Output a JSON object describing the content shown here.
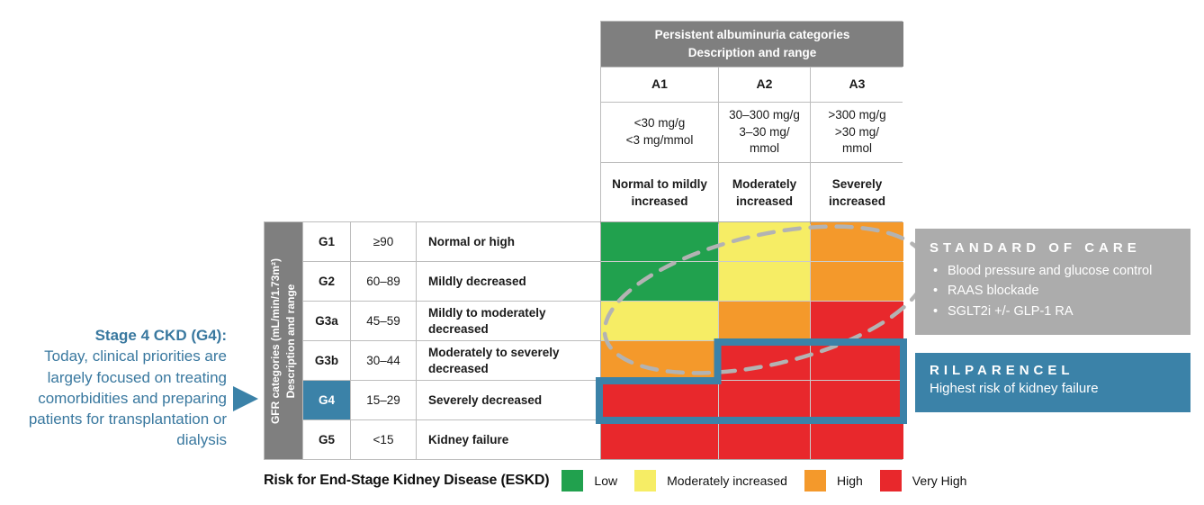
{
  "colors": {
    "low": "#21A14E",
    "moderate": "#F6ED65",
    "high": "#F4992B",
    "very_high": "#E8282C",
    "accent_teal": "#3B82A8",
    "accent_teal_text": "#39789F",
    "header_gray": "#7F7F7F",
    "box_gray": "#ACACAC",
    "dash_gray": "#B3B3B3"
  },
  "albuminuria": {
    "header_line1": "Persistent albuminuria categories",
    "header_line2": "Description and range",
    "columns": [
      {
        "code": "A1",
        "range_lines": [
          "<30 mg/g",
          "<3 mg/mmol"
        ],
        "description": "Normal to mildly increased"
      },
      {
        "code": "A2",
        "range_lines": [
          "30–300 mg/g",
          "3–30 mg/",
          "mmol"
        ],
        "description": "Moderately increased"
      },
      {
        "code": "A3",
        "range_lines": [
          ">300 mg/g",
          ">30 mg/",
          "mmol"
        ],
        "description": "Severely increased"
      }
    ]
  },
  "gfr": {
    "axis_line1": "GFR categories (mL/min/1.73m²)",
    "axis_line2": "Description and range",
    "rows": [
      {
        "code": "G1",
        "range": "≥90",
        "description": "Normal or high",
        "highlight": false
      },
      {
        "code": "G2",
        "range": "60–89",
        "description": "Mildly decreased",
        "highlight": false
      },
      {
        "code": "G3a",
        "range": "45–59",
        "description": "Mildly to moderately decreased",
        "highlight": false
      },
      {
        "code": "G3b",
        "range": "30–44",
        "description": "Moderately to severely decreased",
        "highlight": false
      },
      {
        "code": "G4",
        "range": "15–29",
        "description": "Severely decreased",
        "highlight": true
      },
      {
        "code": "G5",
        "range": "<15",
        "description": "Kidney failure",
        "highlight": false
      }
    ]
  },
  "chart_data": {
    "type": "heatmap",
    "title": "Risk for End-Stage Kidney Disease (ESKD)",
    "x_categories": [
      "A1",
      "A2",
      "A3"
    ],
    "y_categories": [
      "G1",
      "G2",
      "G3a",
      "G3b",
      "G4",
      "G5"
    ],
    "risk_matrix": [
      [
        "low",
        "moderate",
        "high"
      ],
      [
        "low",
        "moderate",
        "high"
      ],
      [
        "moderate",
        "high",
        "very_high"
      ],
      [
        "high",
        "very_high",
        "very_high"
      ],
      [
        "very_high",
        "very_high",
        "very_high"
      ],
      [
        "very_high",
        "very_high",
        "very_high"
      ]
    ],
    "risk_labels": {
      "low": "Low",
      "moderate": "Moderately increased",
      "high": "High",
      "very_high": "Very High"
    },
    "highlighted_region": "G3b A2–A3 and G4 A1–A3 (blue stepped outline); dashed ellipse over lower-risk zone G1–G3b"
  },
  "annotation": {
    "title": "Stage 4 CKD (G4):",
    "body": "Today, clinical priorities are largely focused on treating comorbidities and preparing patients for transplantation or dialysis"
  },
  "standard_of_care": {
    "title": "STANDARD OF CARE",
    "bullets": [
      "Blood pressure and glucose control",
      "RAAS blockade",
      "SGLT2i +/- GLP-1 RA"
    ]
  },
  "rilparencel": {
    "title": "RILPARENCEL",
    "subtitle": "Highest risk of kidney failure"
  },
  "legend": {
    "title": "Risk for End-Stage Kidney Disease (ESKD)",
    "items": [
      {
        "label": "Low",
        "color_key": "low"
      },
      {
        "label": "Moderately increased",
        "color_key": "moderate"
      },
      {
        "label": "High",
        "color_key": "high"
      },
      {
        "label": "Very High",
        "color_key": "very_high"
      }
    ]
  }
}
